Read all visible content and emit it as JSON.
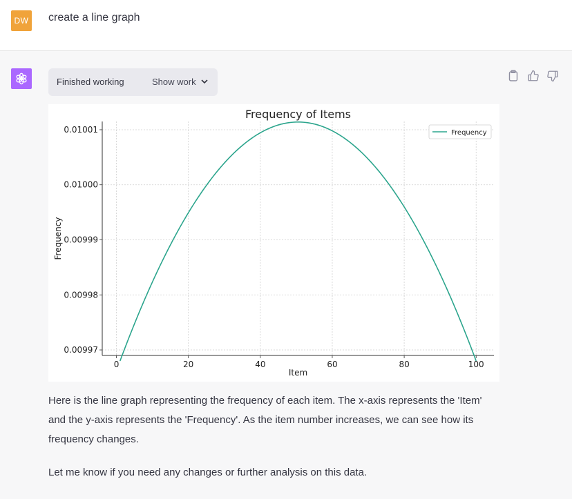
{
  "user": {
    "initials": "DW",
    "message": "create a line graph"
  },
  "assistant": {
    "tool_status": "Finished working",
    "show_work_label": "Show work",
    "paragraphs": [
      "Here is the line graph representing the frequency of each item. The x-axis represents the 'Item' and the y-axis represents the 'Frequency'. As the item number increases, we can see how its frequency changes.",
      "Let me know if you need any changes or further analysis on this data."
    ]
  },
  "icons": {
    "bot_avatar": "openai-logo-icon",
    "copy": "clipboard-icon",
    "like": "thumbs-up-icon",
    "dislike": "thumbs-down-icon",
    "chevron": "chevron-down-icon"
  },
  "colors": {
    "user_avatar": "#f0a33a",
    "bot_avatar": "#ab68ff",
    "line": "#2ca58d"
  },
  "chart_data": {
    "type": "line",
    "title": "Frequency of Items",
    "xlabel": "Item",
    "ylabel": "Frequency",
    "xlim": [
      -3.95,
      104.95
    ],
    "ylim": [
      0.009969,
      0.0100115
    ],
    "xticks": [
      0,
      20,
      40,
      60,
      80,
      100
    ],
    "xtick_labels": [
      "0",
      "20",
      "40",
      "60",
      "80",
      "100"
    ],
    "yticks": [
      0.00997,
      0.00998,
      0.00999,
      0.01,
      0.01001
    ],
    "ytick_labels": [
      "0.00997",
      "0.00998",
      "0.00999",
      "0.01000",
      "0.01001"
    ],
    "grid": true,
    "legend": "top-right",
    "series": [
      {
        "name": "Frequency",
        "x": [
          1,
          5,
          10,
          15,
          20,
          25,
          30,
          35,
          40,
          45,
          50,
          51,
          55,
          60,
          65,
          70,
          75,
          80,
          85,
          90,
          95,
          100
        ],
        "values": [
          0.009968,
          0.009974,
          0.009982,
          0.009989,
          0.009995,
          0.01,
          0.010004,
          0.010008,
          0.01001,
          0.010011,
          0.0100114,
          0.0100114,
          0.010011,
          0.01001,
          0.010008,
          0.010004,
          0.01,
          0.009995,
          0.009989,
          0.009982,
          0.009974,
          0.009968
        ]
      }
    ]
  }
}
